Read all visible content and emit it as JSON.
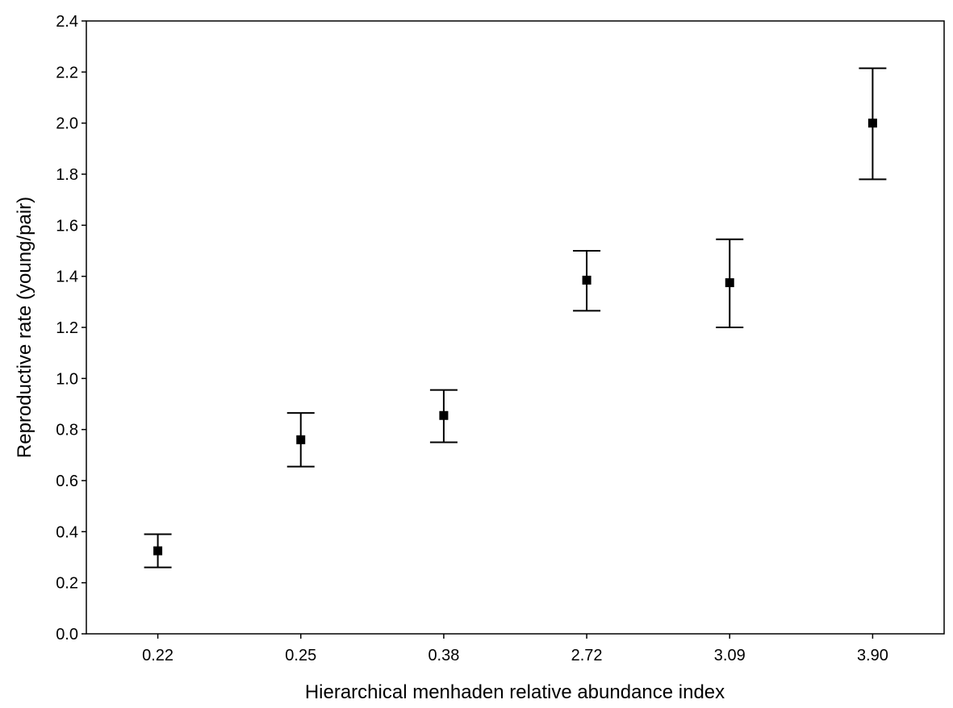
{
  "chart_data": {
    "type": "scatter",
    "xlabel": "Hierarchical menhaden relative abundance index",
    "ylabel": "Reproductive rate (young/pair)",
    "categories": [
      "0.22",
      "0.25",
      "0.38",
      "2.72",
      "3.09",
      "3.90"
    ],
    "y": [
      0.325,
      0.76,
      0.855,
      1.385,
      1.375,
      2.0
    ],
    "error_upper": [
      0.39,
      0.865,
      0.955,
      1.5,
      1.545,
      2.215
    ],
    "error_lower": [
      0.26,
      0.655,
      0.75,
      1.265,
      1.2,
      1.78
    ],
    "ylim": [
      0.0,
      2.4
    ],
    "yticks": [
      "0.0",
      "0.2",
      "0.4",
      "0.6",
      "0.8",
      "1.0",
      "1.2",
      "1.4",
      "1.6",
      "1.8",
      "2.0",
      "2.2",
      "2.4"
    ],
    "grid": false,
    "marker": "square",
    "marker_color": "#000000"
  }
}
